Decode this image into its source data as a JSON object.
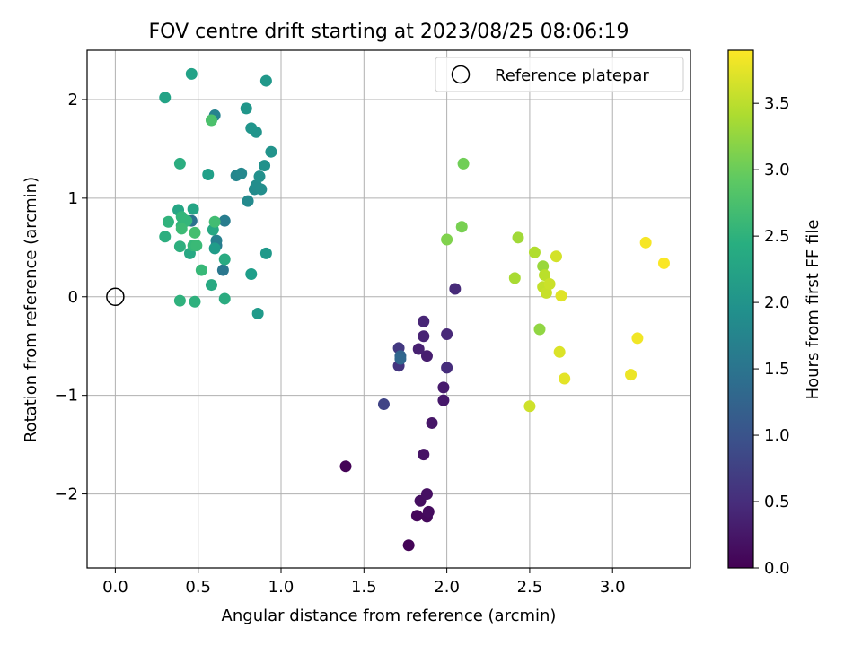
{
  "chart_data": {
    "type": "scatter",
    "title": "FOV centre drift starting at 2023/08/25 08:06:19",
    "xlabel": "Angular distance from reference (arcmin)",
    "ylabel": "Rotation from reference (arcmin)",
    "xlim": [
      -0.17,
      3.47
    ],
    "ylim": [
      -2.75,
      2.5
    ],
    "xticks": [
      0.0,
      0.5,
      1.0,
      1.5,
      2.0,
      2.5,
      3.0
    ],
    "xtick_labels": [
      "0.0",
      "0.5",
      "1.0",
      "1.5",
      "2.0",
      "2.5",
      "3.0"
    ],
    "yticks": [
      -2,
      -1,
      0,
      1,
      2
    ],
    "ytick_labels": [
      "−2",
      "−1",
      "0",
      "1",
      "2"
    ],
    "grid": true,
    "legend": {
      "placement": "upper-right",
      "label": "Reference platepar"
    },
    "reference_point": {
      "x": 0.0,
      "y": 0.0
    },
    "colorbar": {
      "label": "Hours from first FF file",
      "range": [
        0.0,
        3.9
      ],
      "ticks": [
        0.0,
        0.5,
        1.0,
        1.5,
        2.0,
        2.5,
        3.0,
        3.5
      ],
      "tick_labels": [
        "0.0",
        "0.5",
        "1.0",
        "1.5",
        "2.0",
        "2.5",
        "3.0",
        "3.5"
      ],
      "colormap": "viridis"
    },
    "points": [
      {
        "x": 1.39,
        "y": -1.72,
        "h": 0.02
      },
      {
        "x": 1.77,
        "y": -2.52,
        "h": 0.04
      },
      {
        "x": 1.82,
        "y": -2.22,
        "h": 0.07
      },
      {
        "x": 1.88,
        "y": -2.23,
        "h": 0.09
      },
      {
        "x": 1.89,
        "y": -2.18,
        "h": 0.12
      },
      {
        "x": 1.84,
        "y": -2.07,
        "h": 0.15
      },
      {
        "x": 1.88,
        "y": -2.0,
        "h": 0.17
      },
      {
        "x": 1.86,
        "y": -1.6,
        "h": 0.2
      },
      {
        "x": 1.91,
        "y": -1.28,
        "h": 0.23
      },
      {
        "x": 1.98,
        "y": -1.05,
        "h": 0.26
      },
      {
        "x": 1.98,
        "y": -0.92,
        "h": 0.29
      },
      {
        "x": 1.88,
        "y": -0.6,
        "h": 0.32
      },
      {
        "x": 1.83,
        "y": -0.53,
        "h": 0.35
      },
      {
        "x": 1.86,
        "y": -0.4,
        "h": 0.38
      },
      {
        "x": 1.86,
        "y": -0.25,
        "h": 0.41
      },
      {
        "x": 2.0,
        "y": -0.38,
        "h": 0.44
      },
      {
        "x": 2.05,
        "y": 0.08,
        "h": 0.47
      },
      {
        "x": 2.0,
        "y": -0.72,
        "h": 0.5
      },
      {
        "x": 1.71,
        "y": -0.7,
        "h": 0.6
      },
      {
        "x": 1.71,
        "y": -0.52,
        "h": 0.65
      },
      {
        "x": 1.62,
        "y": -1.09,
        "h": 0.8
      },
      {
        "x": 1.72,
        "y": -0.6,
        "h": 1.25
      },
      {
        "x": 1.72,
        "y": -0.63,
        "h": 1.3
      },
      {
        "x": 0.46,
        "y": 0.77,
        "h": 1.45
      },
      {
        "x": 0.65,
        "y": 0.27,
        "h": 1.55
      },
      {
        "x": 0.61,
        "y": 0.52,
        "h": 1.6
      },
      {
        "x": 0.66,
        "y": 0.77,
        "h": 1.65
      },
      {
        "x": 0.61,
        "y": 0.57,
        "h": 1.7
      },
      {
        "x": 0.6,
        "y": 1.84,
        "h": 1.75
      },
      {
        "x": 0.73,
        "y": 1.23,
        "h": 1.8
      },
      {
        "x": 0.76,
        "y": 1.25,
        "h": 1.82
      },
      {
        "x": 0.8,
        "y": 0.97,
        "h": 1.85
      },
      {
        "x": 0.84,
        "y": 1.09,
        "h": 1.87
      },
      {
        "x": 0.85,
        "y": 1.13,
        "h": 1.9
      },
      {
        "x": 0.88,
        "y": 1.09,
        "h": 1.92
      },
      {
        "x": 0.87,
        "y": 1.22,
        "h": 1.95
      },
      {
        "x": 0.9,
        "y": 1.33,
        "h": 1.97
      },
      {
        "x": 0.94,
        "y": 1.47,
        "h": 1.99
      },
      {
        "x": 0.85,
        "y": 1.67,
        "h": 2.01
      },
      {
        "x": 0.82,
        "y": 1.71,
        "h": 2.03
      },
      {
        "x": 0.79,
        "y": 1.91,
        "h": 2.05
      },
      {
        "x": 0.91,
        "y": 2.19,
        "h": 2.07
      },
      {
        "x": 0.91,
        "y": 0.44,
        "h": 2.09
      },
      {
        "x": 0.86,
        "y": -0.17,
        "h": 2.11
      },
      {
        "x": 0.6,
        "y": 0.49,
        "h": 2.13
      },
      {
        "x": 0.82,
        "y": 0.23,
        "h": 2.16
      },
      {
        "x": 0.56,
        "y": 1.24,
        "h": 2.2
      },
      {
        "x": 0.46,
        "y": 2.26,
        "h": 2.23
      },
      {
        "x": 0.3,
        "y": 2.02,
        "h": 2.26
      },
      {
        "x": 0.47,
        "y": 0.89,
        "h": 2.28
      },
      {
        "x": 0.38,
        "y": 0.88,
        "h": 2.3
      },
      {
        "x": 0.59,
        "y": 0.68,
        "h": 2.32
      },
      {
        "x": 0.45,
        "y": 0.44,
        "h": 2.34
      },
      {
        "x": 0.58,
        "y": 0.12,
        "h": 2.36
      },
      {
        "x": 0.66,
        "y": 0.38,
        "h": 2.38
      },
      {
        "x": 0.66,
        "y": -0.02,
        "h": 2.4
      },
      {
        "x": 0.39,
        "y": 1.35,
        "h": 2.42
      },
      {
        "x": 0.3,
        "y": 0.61,
        "h": 2.44
      },
      {
        "x": 0.39,
        "y": 0.51,
        "h": 2.46
      },
      {
        "x": 0.48,
        "y": -0.05,
        "h": 2.48
      },
      {
        "x": 0.39,
        "y": -0.04,
        "h": 2.5
      },
      {
        "x": 0.32,
        "y": 0.76,
        "h": 2.52
      },
      {
        "x": 0.4,
        "y": 0.72,
        "h": 2.54
      },
      {
        "x": 0.4,
        "y": 0.81,
        "h": 2.56
      },
      {
        "x": 0.43,
        "y": 0.77,
        "h": 2.58
      },
      {
        "x": 0.47,
        "y": 0.52,
        "h": 2.6
      },
      {
        "x": 0.52,
        "y": 0.27,
        "h": 2.62
      },
      {
        "x": 0.49,
        "y": 0.52,
        "h": 2.64
      },
      {
        "x": 0.4,
        "y": 0.69,
        "h": 2.66
      },
      {
        "x": 0.6,
        "y": 0.76,
        "h": 2.7
      },
      {
        "x": 0.48,
        "y": 0.65,
        "h": 2.73
      },
      {
        "x": 0.58,
        "y": 1.79,
        "h": 2.78
      },
      {
        "x": 2.1,
        "y": 1.35,
        "h": 3.05
      },
      {
        "x": 2.09,
        "y": 0.71,
        "h": 3.1
      },
      {
        "x": 2.0,
        "y": 0.58,
        "h": 3.15
      },
      {
        "x": 2.56,
        "y": -0.33,
        "h": 3.25
      },
      {
        "x": 2.58,
        "y": 0.31,
        "h": 3.3
      },
      {
        "x": 2.43,
        "y": 0.6,
        "h": 3.35
      },
      {
        "x": 2.41,
        "y": 0.19,
        "h": 3.4
      },
      {
        "x": 2.53,
        "y": 0.45,
        "h": 3.45
      },
      {
        "x": 2.59,
        "y": 0.22,
        "h": 3.5
      },
      {
        "x": 2.58,
        "y": 0.1,
        "h": 3.55
      },
      {
        "x": 2.6,
        "y": 0.04,
        "h": 3.58
      },
      {
        "x": 2.62,
        "y": 0.13,
        "h": 3.6
      },
      {
        "x": 2.5,
        "y": -1.11,
        "h": 3.62
      },
      {
        "x": 2.66,
        "y": 0.41,
        "h": 3.65
      },
      {
        "x": 2.68,
        "y": -0.56,
        "h": 3.7
      },
      {
        "x": 2.69,
        "y": 0.01,
        "h": 3.72
      },
      {
        "x": 2.71,
        "y": -0.83,
        "h": 3.75
      },
      {
        "x": 3.11,
        "y": -0.79,
        "h": 3.8
      },
      {
        "x": 3.15,
        "y": -0.42,
        "h": 3.83
      },
      {
        "x": 3.2,
        "y": 0.55,
        "h": 3.86
      },
      {
        "x": 3.31,
        "y": 0.34,
        "h": 3.88
      }
    ]
  }
}
